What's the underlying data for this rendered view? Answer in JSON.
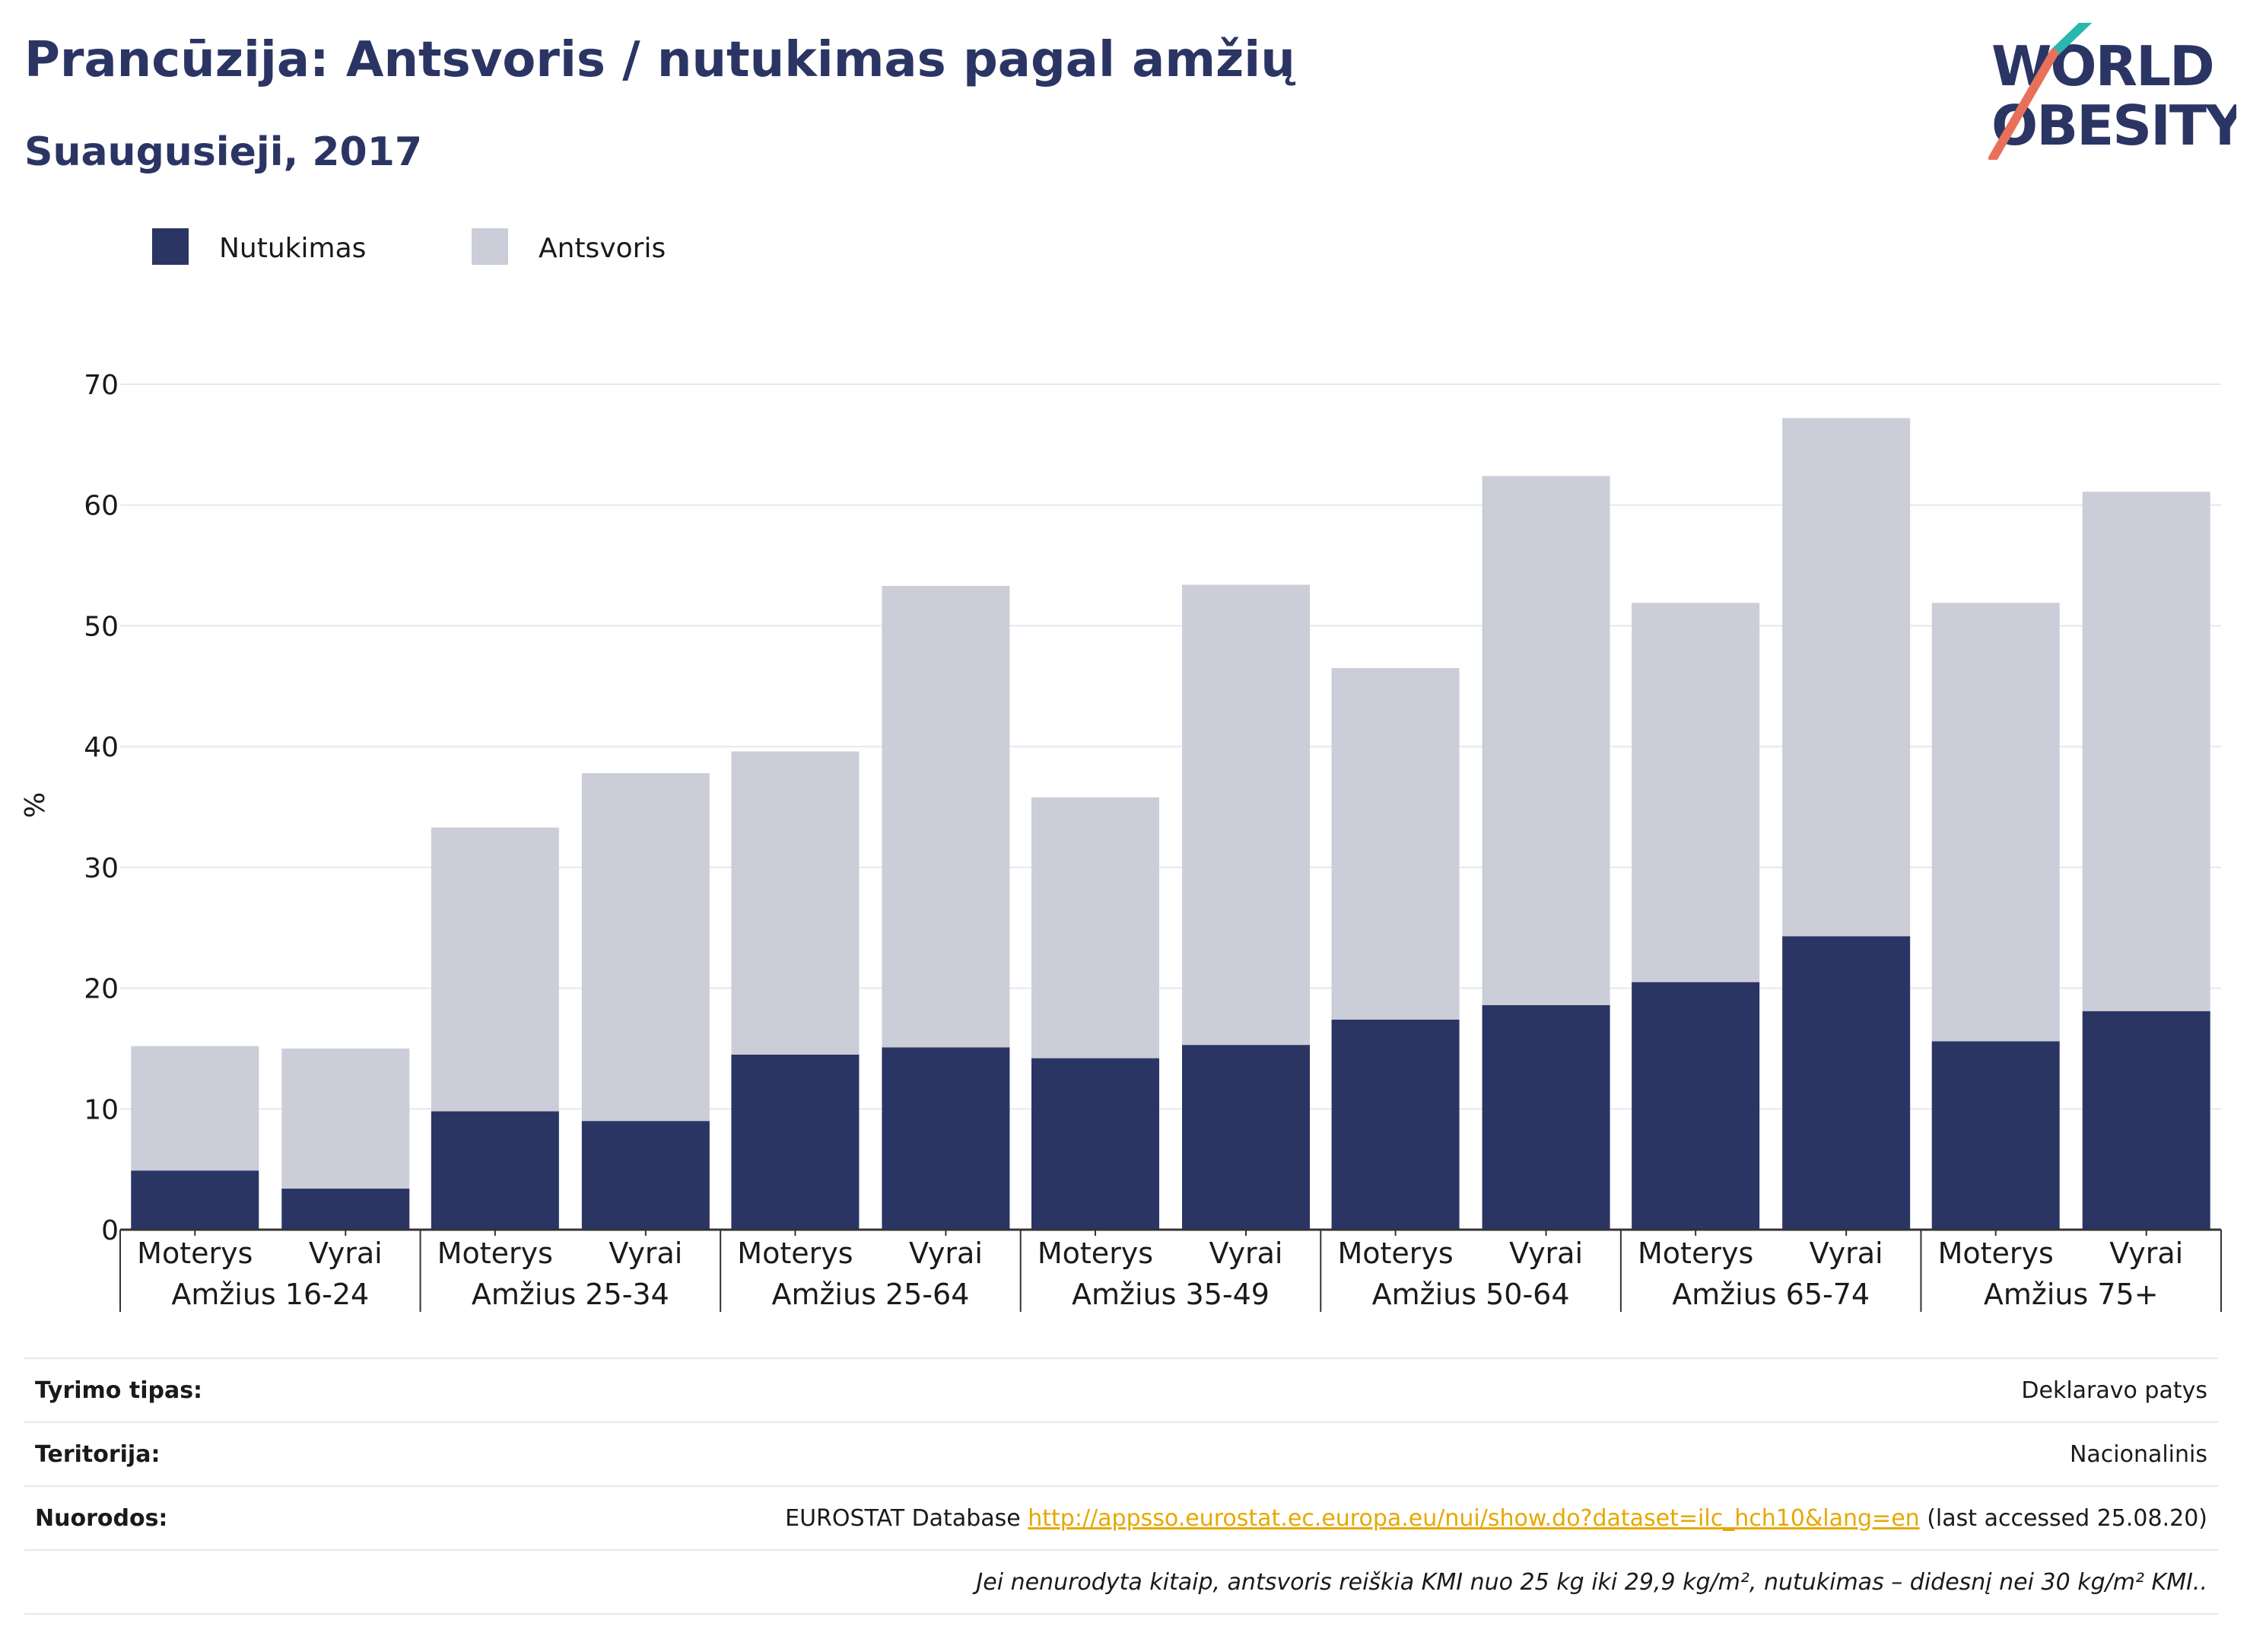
{
  "title": "Prancūzija: Antsvoris / nutukimas pagal amžių",
  "subtitle": "Suaugusieji, 2017",
  "logo": {
    "line1": "WORLD",
    "line2": "OBESITY"
  },
  "colors": {
    "obesity": "#2b3564",
    "overweight": "#cbcdd9",
    "title": "#2b3564",
    "link": "#e6a800"
  },
  "chart_data": {
    "type": "bar",
    "stacked": true,
    "ylabel": "%",
    "ylim": [
      0,
      70
    ],
    "yticks": [
      0,
      10,
      20,
      30,
      40,
      50,
      60,
      70
    ],
    "grid": true,
    "legend_position": "top-left",
    "groups": [
      "Amžius 16-24",
      "Amžius 25-34",
      "Amžius 25-64",
      "Amžius 35-49",
      "Amžius 50-64",
      "Amžius 65-74",
      "Amžius 75+"
    ],
    "sexes": [
      "Moterys",
      "Vyrai"
    ],
    "series": [
      {
        "name": "Nutukimas",
        "values": [
          4.9,
          3.4,
          9.8,
          9.0,
          14.5,
          15.1,
          14.2,
          15.3,
          17.4,
          18.6,
          20.5,
          24.3,
          15.6,
          18.1
        ]
      },
      {
        "name": "Antsvoris",
        "values": [
          10.3,
          11.6,
          23.5,
          28.8,
          25.1,
          38.2,
          21.6,
          38.1,
          29.1,
          43.8,
          31.4,
          42.9,
          36.3,
          43.0
        ]
      }
    ]
  },
  "info": {
    "survey_label": "Tyrimo tipas:",
    "survey_value": "Deklaravo patys",
    "territory_label": "Teritorija:",
    "territory_value": "Nacionalinis",
    "refs_label": "Nuorodos:",
    "refs_prefix": "EUROSTAT Database",
    "refs_link": "http://appsso.eurostat.ec.europa.eu/nui/show.do?dataset=ilc_hch10&lang=en",
    "refs_suffix": "(last accessed 25.08.20)",
    "note": "Jei nenurodyta kitaip, antsvoris reiškia KMI nuo 25 kg iki 29,9 kg/m², nutukimas – didesnį nei 30 kg/m² KMI.."
  }
}
